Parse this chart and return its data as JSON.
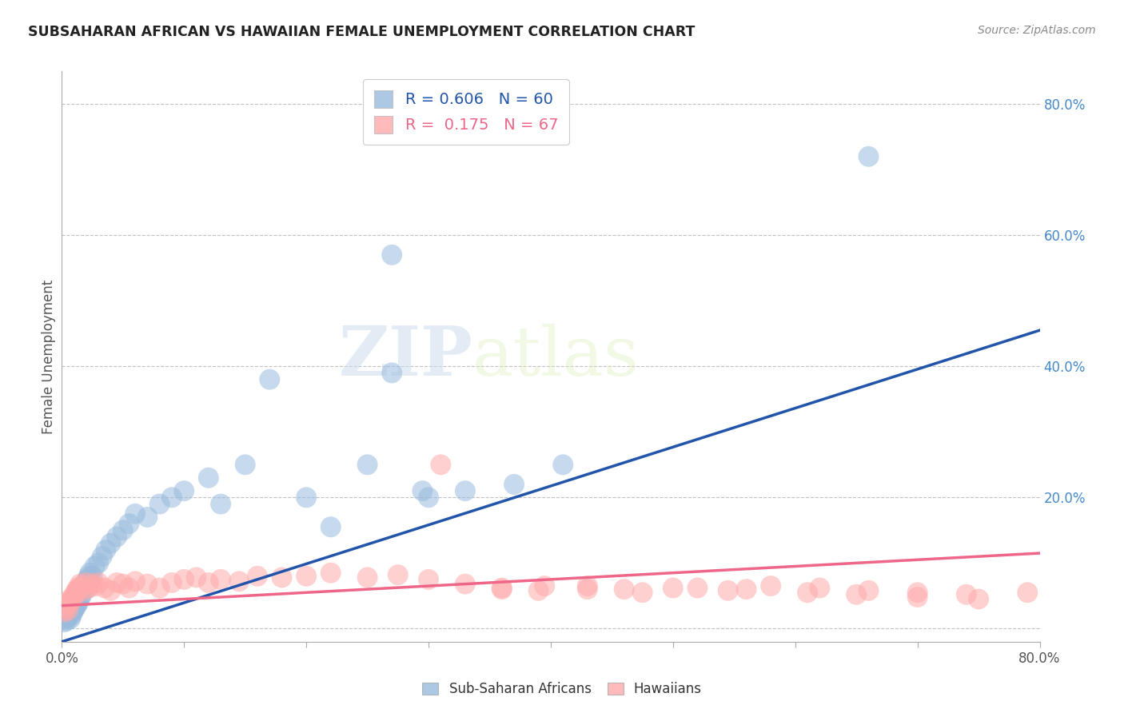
{
  "title": "SUBSAHARAN AFRICAN VS HAWAIIAN FEMALE UNEMPLOYMENT CORRELATION CHART",
  "source": "Source: ZipAtlas.com",
  "ylabel": "Female Unemployment",
  "legend_blue_r": "0.606",
  "legend_blue_n": "60",
  "legend_pink_r": "0.175",
  "legend_pink_n": "67",
  "legend_label_blue": "Sub-Saharan Africans",
  "legend_label_pink": "Hawaiians",
  "blue_color": "#99BBDD",
  "pink_color": "#FFAAAA",
  "blue_line_color": "#2255AA",
  "pink_line_color": "#EE6688",
  "watermark_zip": "ZIP",
  "watermark_atlas": "atlas",
  "xlim": [
    0.0,
    0.8
  ],
  "ylim": [
    -0.02,
    0.85
  ],
  "blue_line_x0": 0.0,
  "blue_line_y0": -0.02,
  "blue_line_x1": 0.8,
  "blue_line_y1": 0.455,
  "pink_line_x0": 0.0,
  "pink_line_y0": 0.035,
  "pink_line_x1": 0.8,
  "pink_line_y1": 0.115,
  "blue_scatter_x": [
    0.002,
    0.003,
    0.004,
    0.005,
    0.005,
    0.006,
    0.006,
    0.007,
    0.007,
    0.008,
    0.008,
    0.009,
    0.009,
    0.01,
    0.01,
    0.011,
    0.011,
    0.012,
    0.013,
    0.013,
    0.014,
    0.015,
    0.015,
    0.016,
    0.017,
    0.018,
    0.019,
    0.02,
    0.021,
    0.022,
    0.023,
    0.025,
    0.027,
    0.03,
    0.033,
    0.036,
    0.04,
    0.045,
    0.05,
    0.055,
    0.06,
    0.07,
    0.08,
    0.09,
    0.1,
    0.12,
    0.13,
    0.15,
    0.17,
    0.2,
    0.22,
    0.25,
    0.27,
    0.3,
    0.33,
    0.37,
    0.41,
    0.66,
    0.27,
    0.295
  ],
  "blue_scatter_y": [
    0.01,
    0.015,
    0.012,
    0.018,
    0.02,
    0.022,
    0.025,
    0.015,
    0.028,
    0.02,
    0.03,
    0.025,
    0.035,
    0.028,
    0.038,
    0.032,
    0.04,
    0.035,
    0.038,
    0.045,
    0.042,
    0.048,
    0.055,
    0.05,
    0.06,
    0.065,
    0.07,
    0.06,
    0.075,
    0.08,
    0.085,
    0.08,
    0.095,
    0.1,
    0.11,
    0.12,
    0.13,
    0.14,
    0.15,
    0.16,
    0.175,
    0.17,
    0.19,
    0.2,
    0.21,
    0.23,
    0.19,
    0.25,
    0.38,
    0.2,
    0.155,
    0.25,
    0.57,
    0.2,
    0.21,
    0.22,
    0.25,
    0.72,
    0.39,
    0.21
  ],
  "pink_scatter_x": [
    0.002,
    0.003,
    0.004,
    0.005,
    0.005,
    0.006,
    0.007,
    0.008,
    0.009,
    0.01,
    0.011,
    0.012,
    0.013,
    0.014,
    0.015,
    0.016,
    0.018,
    0.02,
    0.022,
    0.025,
    0.028,
    0.03,
    0.035,
    0.04,
    0.045,
    0.05,
    0.055,
    0.06,
    0.07,
    0.08,
    0.09,
    0.1,
    0.11,
    0.12,
    0.13,
    0.145,
    0.16,
    0.18,
    0.2,
    0.22,
    0.25,
    0.275,
    0.3,
    0.33,
    0.36,
    0.39,
    0.43,
    0.46,
    0.5,
    0.545,
    0.58,
    0.62,
    0.66,
    0.7,
    0.74,
    0.31,
    0.36,
    0.395,
    0.43,
    0.475,
    0.52,
    0.56,
    0.61,
    0.65,
    0.7,
    0.75,
    0.79
  ],
  "pink_scatter_y": [
    0.025,
    0.03,
    0.035,
    0.028,
    0.04,
    0.038,
    0.045,
    0.042,
    0.048,
    0.05,
    0.055,
    0.058,
    0.062,
    0.06,
    0.068,
    0.065,
    0.058,
    0.07,
    0.062,
    0.068,
    0.065,
    0.07,
    0.062,
    0.058,
    0.07,
    0.068,
    0.062,
    0.072,
    0.068,
    0.062,
    0.07,
    0.075,
    0.078,
    0.07,
    0.075,
    0.072,
    0.08,
    0.078,
    0.08,
    0.085,
    0.078,
    0.082,
    0.075,
    0.068,
    0.062,
    0.058,
    0.065,
    0.06,
    0.062,
    0.058,
    0.065,
    0.062,
    0.058,
    0.055,
    0.052,
    0.25,
    0.06,
    0.065,
    0.06,
    0.055,
    0.062,
    0.06,
    0.055,
    0.052,
    0.048,
    0.045,
    0.055
  ]
}
